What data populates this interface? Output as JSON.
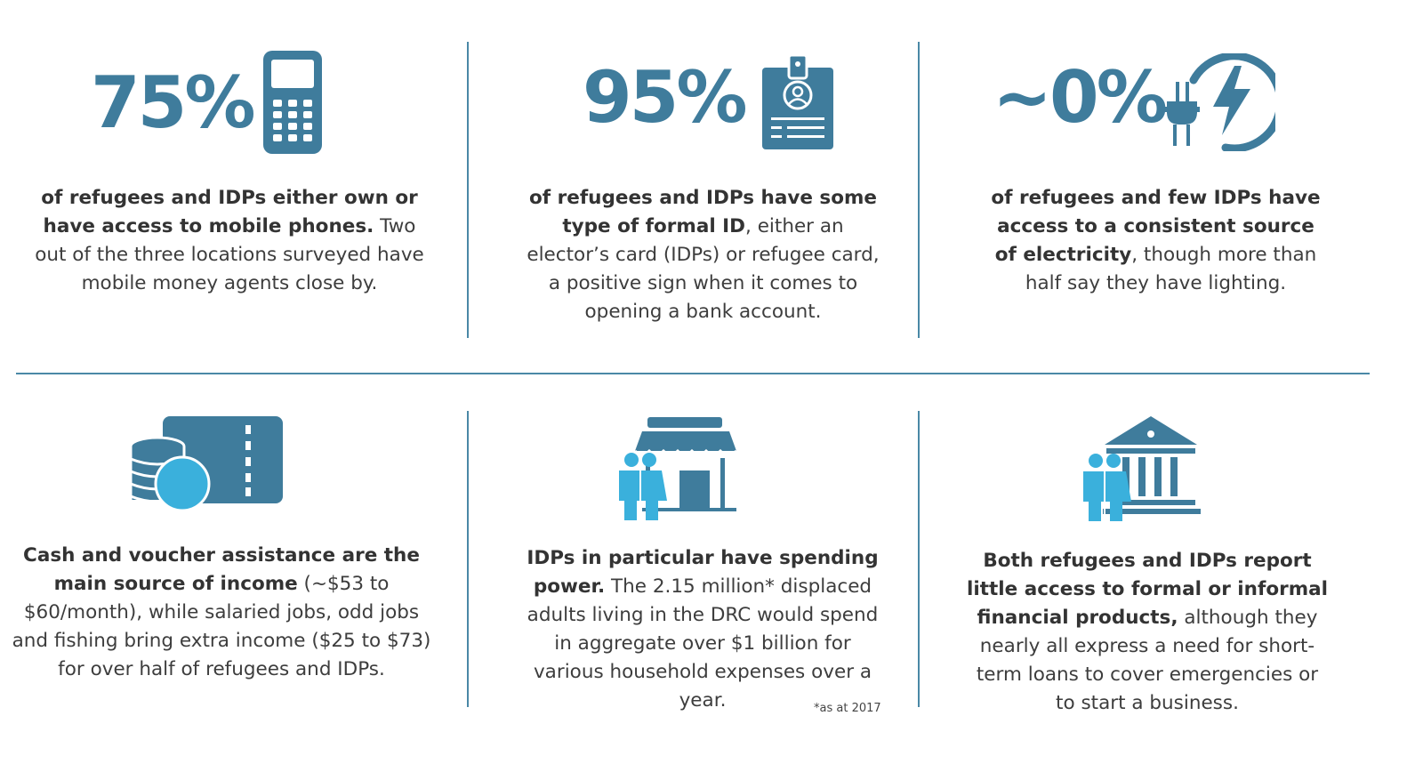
{
  "stats": [
    {
      "value": "75%",
      "icon": "mobile-phone-icon",
      "bold": "of refugees and IDPs either own or have access to mobile phones.",
      "rest": " Two out of the three locations surveyed have mobile money agents close by."
    },
    {
      "value": "95%",
      "icon": "id-badge-icon",
      "bold": "of refugees and IDPs have some type of formal ID",
      "rest": ", either an elector’s card (IDPs) or refugee card, a positive sign when it comes to opening a bank account."
    },
    {
      "value": "~0%",
      "icon": "electricity-plug-icon",
      "bold": "of refugees and few IDPs have access to a consistent source of electricity",
      "rest": ", though more than half say they have lighting."
    }
  ],
  "findings": [
    {
      "icon": "cash-voucher-icon",
      "bold": "Cash and voucher assistance are the main source of income",
      "rest": " (~$53 to $60/month), while salaried jobs, odd jobs and fishing bring extra income ($25 to $73) for over half of refugees and IDPs."
    },
    {
      "icon": "people-shop-icon",
      "bold": "IDPs in particular have spending power.",
      "rest": " The 2.15 million* displaced adults living in the DRC would spend in aggregate over $1 billion for various household expenses over a year."
    },
    {
      "icon": "people-bank-icon",
      "bold": "Both refugees and IDPs report little access to formal or informal financial products,",
      "rest": " although they nearly all express a need for short-term loans to cover emergencies or to start a business."
    }
  ],
  "footnote": "*as at 2017",
  "colors": {
    "dark_blue": "#3f7c9c",
    "light_blue": "#3ab0dc",
    "divider": "#4a88a6"
  }
}
